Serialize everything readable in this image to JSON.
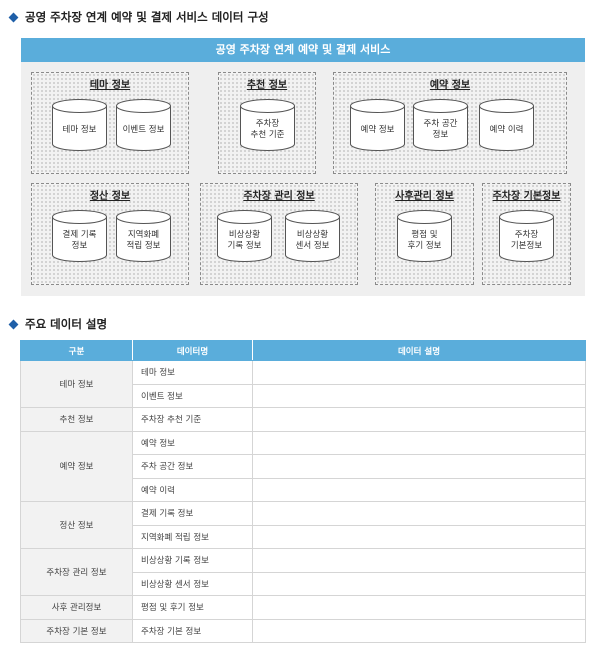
{
  "section1": {
    "title": "공영 주차장 연계 예약 및 결제 서비스 데이터 구성"
  },
  "diagram": {
    "banner": "공영 주차장  연계 예약 및 결제 서비스",
    "groups": [
      {
        "label": "테마 정보",
        "items": [
          "테마 정보",
          "이벤트 정보"
        ]
      },
      {
        "label": "추천 정보",
        "items": [
          "주차장\n추천 기준"
        ]
      },
      {
        "label": "예약 정보",
        "items": [
          "예약 정보",
          "주차 공간\n정보",
          "예약 이력"
        ]
      },
      {
        "label": "정산 정보",
        "items": [
          "결제 기록\n정보",
          "지역화폐\n적립 정보"
        ]
      },
      {
        "label": "주차장 관리 정보",
        "items": [
          "비상상황\n기록 정보",
          "비상상황\n센서 정보"
        ]
      },
      {
        "label": "사후관리 정보",
        "items": [
          "평점 및\n후기 정보"
        ]
      },
      {
        "label": "주차장 기본정보",
        "items": [
          "주차장\n기본정보"
        ]
      }
    ]
  },
  "section2": {
    "title": "주요 데이터 설명"
  },
  "table": {
    "headers": [
      "구분",
      "데이터명",
      "데이터 설명"
    ],
    "rows": [
      {
        "category": "테마 정보",
        "names": [
          "테마 정보",
          "이벤트 정보"
        ]
      },
      {
        "category": "추천 정보",
        "names": [
          "주차장 추천 기준"
        ]
      },
      {
        "category": "예약 정보",
        "names": [
          "예약 정보",
          "주차 공간 정보",
          "예약 이력"
        ]
      },
      {
        "category": "정산 정보",
        "names": [
          "결제 기록 정보",
          "지역화폐 적립 정보"
        ]
      },
      {
        "category": "주차장 관리 정보",
        "names": [
          "비상상황 기록 정보",
          "비상상황 센서 정보"
        ]
      },
      {
        "category": "사후 관리정보",
        "names": [
          "평점 및 후기 정보"
        ]
      },
      {
        "category": "주차장 기본 정보",
        "names": [
          "주차장 기본 정보"
        ]
      }
    ]
  },
  "colors": {
    "accent": "#5aaddb",
    "bullet": "#1f5fa8",
    "panel": "#efefef"
  }
}
